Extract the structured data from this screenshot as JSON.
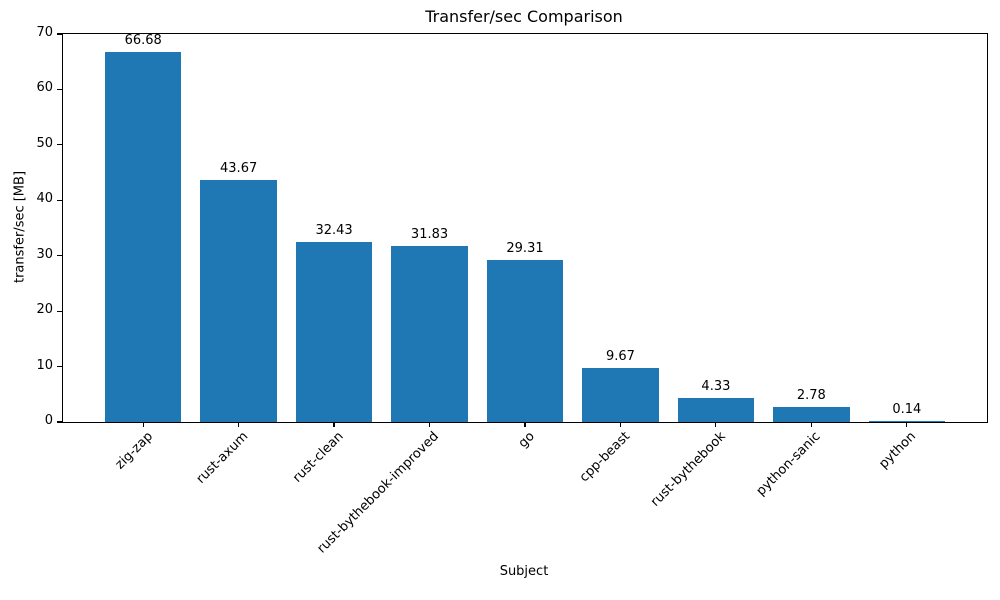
{
  "chart_data": {
    "type": "bar",
    "title": "Transfer/sec Comparison",
    "xlabel": "Subject",
    "ylabel": "transfer/sec [MB]",
    "categories": [
      "zig-zap",
      "rust-axum",
      "rust-clean",
      "rust-bythebook-improved",
      "go",
      "cpp-beast",
      "rust-bythebook",
      "python-sanic",
      "python"
    ],
    "values": [
      66.68,
      43.67,
      32.43,
      31.83,
      29.31,
      9.67,
      4.33,
      2.78,
      0.14
    ],
    "bar_labels": [
      "66.68",
      "43.67",
      "32.43",
      "31.83",
      "29.31",
      "9.67",
      "4.33",
      "2.78",
      "0.14"
    ],
    "ylim": [
      0,
      70
    ],
    "yticks": [
      0,
      10,
      20,
      30,
      40,
      50,
      60,
      70
    ],
    "ytick_labels": [
      "0",
      "10",
      "20",
      "30",
      "40",
      "50",
      "60",
      "70"
    ],
    "bar_color": "#1f77b4",
    "grid": false,
    "legend": null
  }
}
